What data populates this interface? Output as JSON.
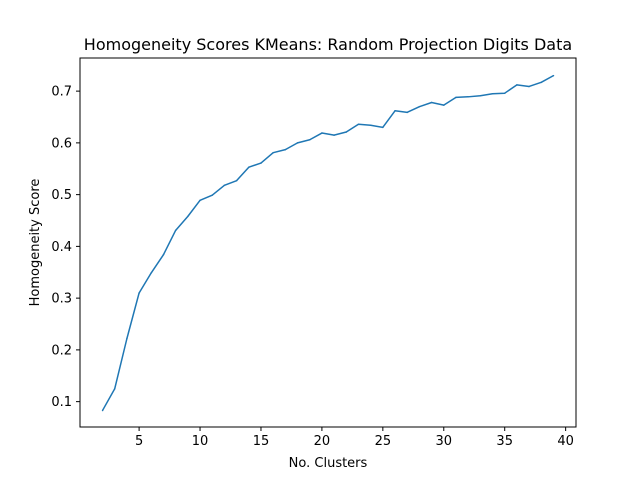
{
  "chart_data": {
    "type": "line",
    "title": "Homogeneity Scores KMeans: Random Projection Digits Data",
    "xlabel": "No. Clusters",
    "ylabel": "Homogeneity Score",
    "xlim": [
      0.15,
      40.85
    ],
    "ylim": [
      0.051,
      0.764
    ],
    "xticks": [
      5,
      10,
      15,
      20,
      25,
      30,
      35,
      40
    ],
    "yticks": [
      0.1,
      0.2,
      0.3,
      0.4,
      0.5,
      0.6,
      0.7
    ],
    "grid": false,
    "series_color": "#1f77b4",
    "series": [
      {
        "x": [
          2,
          3,
          4,
          5,
          6,
          7,
          8,
          9,
          10,
          11,
          12,
          13,
          14,
          15,
          16,
          17,
          18,
          19,
          20,
          21,
          22,
          23,
          24,
          25,
          26,
          27,
          28,
          29,
          30,
          31,
          32,
          33,
          34,
          35,
          36,
          37,
          38,
          39
        ],
        "values": [
          0.083,
          0.125,
          0.222,
          0.31,
          0.349,
          0.384,
          0.431,
          0.458,
          0.489,
          0.499,
          0.518,
          0.527,
          0.553,
          0.561,
          0.581,
          0.587,
          0.6,
          0.606,
          0.619,
          0.615,
          0.621,
          0.636,
          0.634,
          0.63,
          0.662,
          0.659,
          0.67,
          0.678,
          0.673,
          0.688,
          0.689,
          0.691,
          0.695,
          0.696,
          0.712,
          0.709,
          0.717,
          0.73
        ]
      }
    ]
  }
}
